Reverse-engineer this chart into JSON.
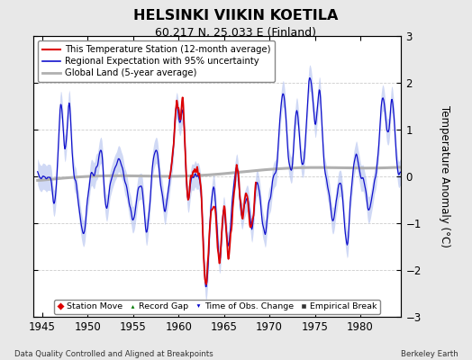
{
  "title": "HELSINKI VIIKIN KOETILA",
  "subtitle": "60.217 N, 25.033 E (Finland)",
  "ylabel": "Temperature Anomaly (°C)",
  "footer_left": "Data Quality Controlled and Aligned at Breakpoints",
  "footer_right": "Berkeley Earth",
  "xlim": [
    1944.0,
    1984.5
  ],
  "ylim": [
    -3,
    3
  ],
  "yticks": [
    -3,
    -2,
    -1,
    0,
    1,
    2,
    3
  ],
  "xticks": [
    1945,
    1950,
    1955,
    1960,
    1965,
    1970,
    1975,
    1980
  ],
  "bg_color": "#e8e8e8",
  "plot_bg_color": "#ffffff",
  "red_start": 1959.0,
  "red_end": 1968.5,
  "red_gap_start": 1969.2,
  "red_gap_end": 1971.0
}
